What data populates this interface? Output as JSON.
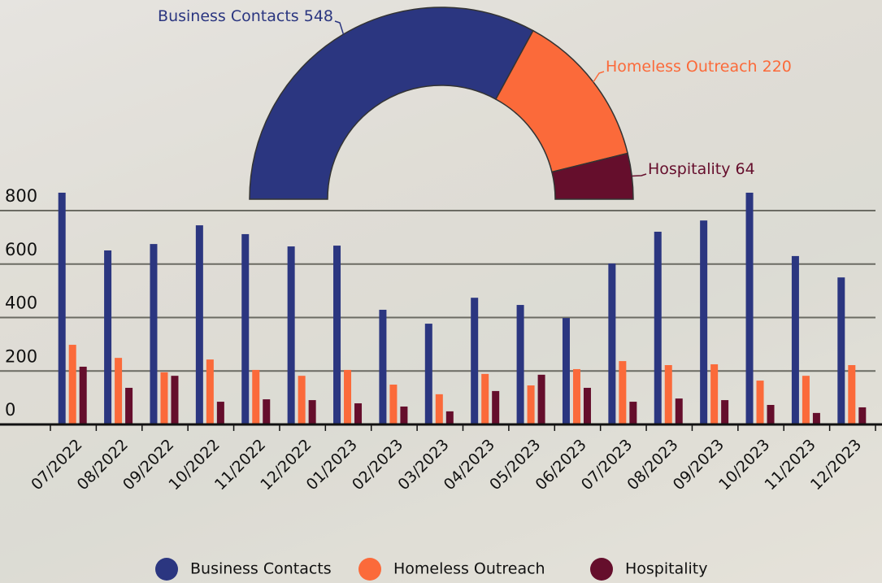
{
  "chart_data": [
    {
      "type": "pie",
      "half": true,
      "categories": [
        "Business Contacts",
        "Homeless Outreach",
        "Hospitality"
      ],
      "values": [
        548,
        220,
        64
      ],
      "colors": [
        "#2b3680",
        "#fb6a3a",
        "#650e2c"
      ]
    },
    {
      "type": "bar",
      "categories": [
        "07/2022",
        "08/2022",
        "09/2022",
        "10/2022",
        "11/2022",
        "12/2022",
        "01/2023",
        "02/2023",
        "03/2023",
        "04/2023",
        "05/2023",
        "06/2023",
        "07/2023",
        "08/2023",
        "09/2023",
        "10/2023",
        "11/2023",
        "12/2023"
      ],
      "series": [
        {
          "name": "Business Contacts",
          "color": "#2b3680",
          "values": [
            867,
            651,
            675,
            745,
            712,
            666,
            669,
            429,
            377,
            474,
            447,
            398,
            602,
            721,
            763,
            867,
            630,
            550
          ]
        },
        {
          "name": "Homeless Outreach",
          "color": "#fb6a3a",
          "values": [
            298,
            249,
            195,
            243,
            204,
            182,
            204,
            149,
            113,
            189,
            146,
            207,
            237,
            222,
            225,
            164,
            182,
            222
          ]
        },
        {
          "name": "Hospitality",
          "color": "#650e2c",
          "values": [
            216,
            137,
            182,
            85,
            94,
            91,
            79,
            67,
            49,
            125,
            186,
            137,
            85,
            97,
            91,
            73,
            43,
            64
          ]
        }
      ],
      "ylim": [
        0,
        870
      ],
      "yticks": [
        0,
        200,
        400,
        600,
        800
      ],
      "grid": true,
      "legend": "bottom"
    }
  ]
}
